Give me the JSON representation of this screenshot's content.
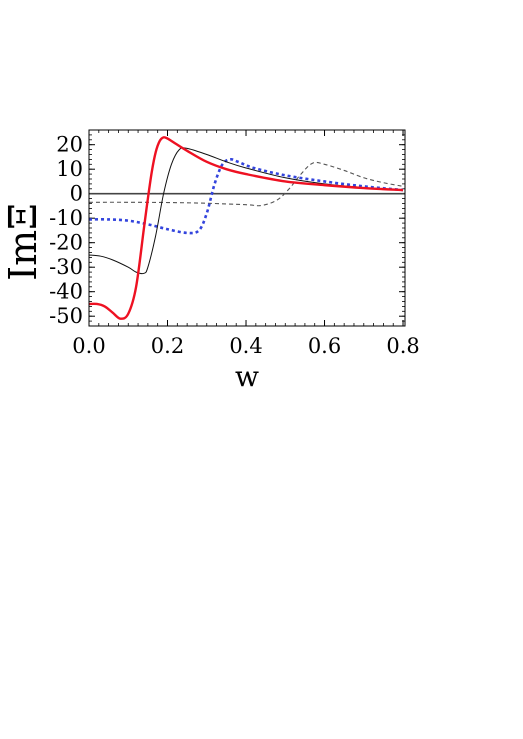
{
  "chart_data": {
    "type": "line",
    "title": "",
    "xlabel": "w",
    "ylabel": "ImΞ",
    "xlim": [
      0.0,
      0.805
    ],
    "ylim": [
      -54,
      26
    ],
    "x_ticks": [
      0.0,
      0.2,
      0.4,
      0.6,
      0.8
    ],
    "x_tick_labels": [
      "0.0",
      "0.2",
      "0.4",
      "0.6",
      "0.8"
    ],
    "y_ticks": [
      20,
      10,
      0,
      -10,
      -20,
      -30,
      -40,
      -50
    ],
    "y_tick_labels": [
      "20",
      "10",
      "0",
      "-10",
      "-20",
      "-30",
      "-40",
      "-50"
    ],
    "grid": false,
    "legend": "none",
    "series": [
      {
        "color": "#555555",
        "style": "dashed-thin",
        "x": [
          0.0,
          0.1,
          0.2,
          0.3,
          0.4,
          0.44,
          0.48,
          0.51,
          0.54,
          0.57,
          0.6,
          0.65,
          0.7,
          0.75,
          0.8
        ],
        "y": [
          -3.5,
          -3.5,
          -3.6,
          -3.9,
          -4.5,
          -4.8,
          -2.5,
          2.0,
          8.0,
          12.5,
          12.0,
          9.5,
          6.5,
          4.5,
          3.0
        ]
      },
      {
        "color": "#3344dd",
        "style": "dotted-thick",
        "x": [
          0.0,
          0.05,
          0.1,
          0.15,
          0.2,
          0.25,
          0.28,
          0.3,
          0.32,
          0.34,
          0.36,
          0.38,
          0.42,
          0.5,
          0.6,
          0.7,
          0.8
        ],
        "y": [
          -10.5,
          -10.5,
          -11.0,
          -12.5,
          -14.5,
          -16.0,
          -15.0,
          -8.0,
          4.0,
          12.0,
          14.0,
          13.0,
          10.5,
          7.5,
          5.0,
          3.0,
          1.5
        ]
      },
      {
        "color": "#111111",
        "style": "solid-thin",
        "x": [
          0.0,
          0.03,
          0.06,
          0.1,
          0.12,
          0.14,
          0.15,
          0.17,
          0.19,
          0.21,
          0.23,
          0.25,
          0.3,
          0.35,
          0.4,
          0.5,
          0.6,
          0.7,
          0.8
        ],
        "y": [
          -25.0,
          -25.5,
          -27.0,
          -30.0,
          -32.0,
          -32.5,
          -30.0,
          -17.0,
          0.0,
          12.0,
          18.0,
          18.5,
          16.0,
          13.0,
          10.5,
          6.5,
          4.0,
          2.5,
          1.5
        ]
      },
      {
        "color": "#ee1122",
        "style": "solid-thick",
        "x": [
          0.0,
          0.02,
          0.04,
          0.06,
          0.08,
          0.1,
          0.12,
          0.14,
          0.15,
          0.16,
          0.17,
          0.18,
          0.19,
          0.2,
          0.22,
          0.25,
          0.3,
          0.35,
          0.4,
          0.5,
          0.6,
          0.7,
          0.8
        ],
        "y": [
          -45.0,
          -45.0,
          -46.0,
          -48.5,
          -51.0,
          -49.0,
          -38.0,
          -14.0,
          -2.0,
          9.0,
          17.0,
          21.5,
          23.0,
          22.5,
          20.5,
          17.5,
          13.0,
          10.0,
          8.0,
          5.0,
          3.5,
          2.3,
          1.5
        ]
      }
    ],
    "reference_line": {
      "y": 0,
      "color": "#444444"
    }
  }
}
